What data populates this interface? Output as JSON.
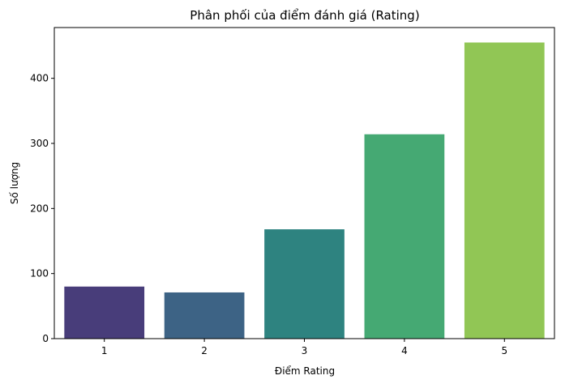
{
  "chart_data": {
    "type": "bar",
    "title": "Phân phối của điểm đánh giá (Rating)",
    "xlabel": "Điểm Rating",
    "ylabel": "Số lượng",
    "categories": [
      "1",
      "2",
      "3",
      "4",
      "5"
    ],
    "values": [
      80,
      71,
      168,
      314,
      455
    ],
    "ylim": [
      0,
      478
    ],
    "yticks": [
      0,
      100,
      200,
      300,
      400
    ],
    "grid": false,
    "legend": "none",
    "colors": [
      "#483d7a",
      "#3d6385",
      "#2e8380",
      "#45a973",
      "#91c655"
    ]
  }
}
